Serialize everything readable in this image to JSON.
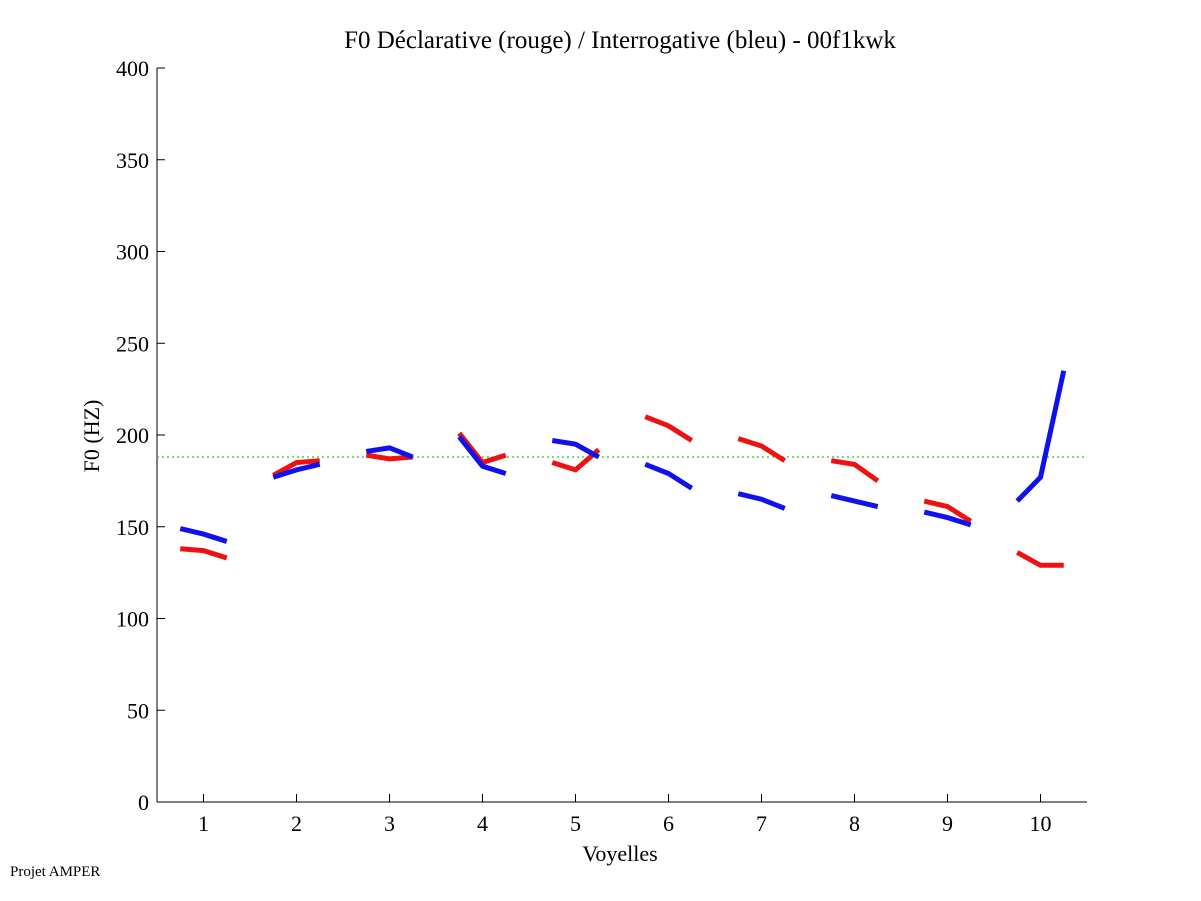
{
  "footer": "Projet AMPER",
  "colors": {
    "declarative": "#ee1111",
    "interrogative": "#1111ee",
    "reference": "#22cc22",
    "axis": "#000000"
  },
  "chart_data": {
    "type": "line",
    "title": "F0 Déclarative (rouge) / Interrogative (bleu) - 00f1kwk",
    "xlabel": "Voyelles",
    "ylabel": "F0 (HZ)",
    "xlim": [
      0.5,
      10.5
    ],
    "ylim": [
      0,
      400
    ],
    "xticks": [
      "1",
      "2",
      "3",
      "4",
      "5",
      "6",
      "7",
      "8",
      "9",
      "10"
    ],
    "yticks": [
      "0",
      "50",
      "100",
      "150",
      "200",
      "250",
      "300",
      "350",
      "400"
    ],
    "reference_line": 188,
    "series": [
      {
        "name": "Déclarative (rouge)",
        "segments": [
          {
            "x": [
              0.75,
              1.0,
              1.25
            ],
            "y": [
              138,
              137,
              133
            ]
          },
          {
            "x": [
              1.75,
              2.0,
              2.25
            ],
            "y": [
              178,
              185,
              186
            ]
          },
          {
            "x": [
              2.75,
              3.0,
              3.25
            ],
            "y": [
              189,
              187,
              188
            ]
          },
          {
            "x": [
              3.75,
              4.0,
              4.25
            ],
            "y": [
              201,
              185,
              189
            ]
          },
          {
            "x": [
              4.75,
              5.0,
              5.25
            ],
            "y": [
              185,
              181,
              192
            ]
          },
          {
            "x": [
              5.75,
              6.0,
              6.25
            ],
            "y": [
              210,
              205,
              197
            ]
          },
          {
            "x": [
              6.75,
              7.0,
              7.25
            ],
            "y": [
              198,
              194,
              186
            ]
          },
          {
            "x": [
              7.75,
              8.0,
              8.25
            ],
            "y": [
              186,
              184,
              175
            ]
          },
          {
            "x": [
              8.75,
              9.0,
              9.25
            ],
            "y": [
              164,
              161,
              153
            ]
          },
          {
            "x": [
              9.75,
              10.0,
              10.25
            ],
            "y": [
              136,
              129,
              129
            ]
          }
        ]
      },
      {
        "name": "Interrogative (bleu)",
        "segments": [
          {
            "x": [
              0.75,
              1.0,
              1.25
            ],
            "y": [
              149,
              146,
              142
            ]
          },
          {
            "x": [
              1.75,
              2.0,
              2.25
            ],
            "y": [
              177,
              181,
              184
            ]
          },
          {
            "x": [
              2.75,
              3.0,
              3.25
            ],
            "y": [
              191,
              193,
              188
            ]
          },
          {
            "x": [
              3.75,
              4.0,
              4.25
            ],
            "y": [
              199,
              183,
              179
            ]
          },
          {
            "x": [
              4.75,
              5.0,
              5.25
            ],
            "y": [
              197,
              195,
              188
            ]
          },
          {
            "x": [
              5.75,
              6.0,
              6.25
            ],
            "y": [
              184,
              179,
              171
            ]
          },
          {
            "x": [
              6.75,
              7.0,
              7.25
            ],
            "y": [
              168,
              165,
              160
            ]
          },
          {
            "x": [
              7.75,
              8.0,
              8.25
            ],
            "y": [
              167,
              164,
              161
            ]
          },
          {
            "x": [
              8.75,
              9.0,
              9.25
            ],
            "y": [
              158,
              155,
              151
            ]
          },
          {
            "x": [
              9.75,
              10.0,
              10.25
            ],
            "y": [
              164,
              177,
              235
            ]
          }
        ]
      }
    ]
  }
}
